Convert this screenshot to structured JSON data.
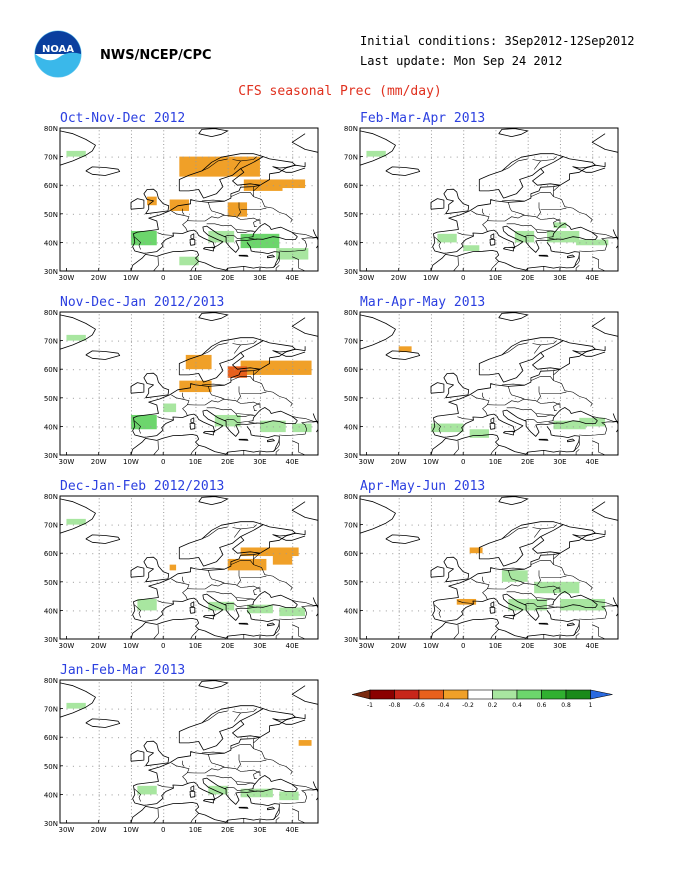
{
  "header": {
    "agency": "NWS/NCEP/CPC",
    "initial_conditions": "Initial conditions: 3Sep2012-12Sep2012",
    "last_update": "Last update: Mon Sep 24 2012",
    "title": "CFS seasonal Prec (mm/day)"
  },
  "logo": {
    "text": "NOAA",
    "icon": "noaa-logo-icon"
  },
  "axes": {
    "lat_labels": [
      "80N",
      "70N",
      "60N",
      "50N",
      "40N",
      "30N"
    ],
    "lon_labels": [
      "30W",
      "20W",
      "10W",
      "0",
      "10E",
      "20E",
      "30E",
      "40E"
    ]
  },
  "panels": [
    {
      "title": "Oct-Nov-Dec 2012",
      "anomalies": [
        {
          "lon": 5,
          "lat": 63,
          "w": 25,
          "h": 7,
          "v": -0.3
        },
        {
          "lon": 25,
          "lat": 58,
          "w": 12,
          "h": 4,
          "v": -0.3
        },
        {
          "lon": 32,
          "lat": 59,
          "w": 12,
          "h": 3,
          "v": -0.3
        },
        {
          "lon": 2,
          "lat": 51,
          "w": 6,
          "h": 4,
          "v": -0.3
        },
        {
          "lon": -5,
          "lat": 53,
          "w": 3,
          "h": 3,
          "v": -0.3
        },
        {
          "lon": 20,
          "lat": 49,
          "w": 6,
          "h": 5,
          "v": -0.3
        },
        {
          "lon": -10,
          "lat": 39,
          "w": 8,
          "h": 5,
          "v": 0.4
        },
        {
          "lon": -30,
          "lat": 70,
          "w": 6,
          "h": 2,
          "v": 0.3
        },
        {
          "lon": 14,
          "lat": 40,
          "w": 8,
          "h": 4,
          "v": 0.3
        },
        {
          "lon": 24,
          "lat": 38,
          "w": 12,
          "h": 5,
          "v": 0.4
        },
        {
          "lon": 35,
          "lat": 34,
          "w": 10,
          "h": 4,
          "v": 0.3
        },
        {
          "lon": 5,
          "lat": 32,
          "w": 6,
          "h": 3,
          "v": 0.3
        }
      ]
    },
    {
      "title": "Feb-Mar-Apr 2013",
      "anomalies": [
        {
          "lon": -30,
          "lat": 70,
          "w": 6,
          "h": 2,
          "v": 0.3
        },
        {
          "lon": -8,
          "lat": 40,
          "w": 6,
          "h": 3,
          "v": 0.3
        },
        {
          "lon": 0,
          "lat": 37,
          "w": 5,
          "h": 2,
          "v": 0.3
        },
        {
          "lon": 16,
          "lat": 40,
          "w": 6,
          "h": 4,
          "v": 0.3
        },
        {
          "lon": 26,
          "lat": 40,
          "w": 10,
          "h": 4,
          "v": 0.3
        },
        {
          "lon": 35,
          "lat": 39,
          "w": 10,
          "h": 2,
          "v": 0.3
        },
        {
          "lon": 28,
          "lat": 45,
          "w": 4,
          "h": 2,
          "v": 0.3
        }
      ]
    },
    {
      "title": "Nov-Dec-Jan 2012/2013",
      "anomalies": [
        {
          "lon": 24,
          "lat": 58,
          "w": 22,
          "h": 5,
          "v": -0.3
        },
        {
          "lon": 20,
          "lat": 57,
          "w": 6,
          "h": 4,
          "v": -0.6
        },
        {
          "lon": 7,
          "lat": 60,
          "w": 8,
          "h": 5,
          "v": -0.3
        },
        {
          "lon": 5,
          "lat": 52,
          "w": 10,
          "h": 4,
          "v": -0.3
        },
        {
          "lon": -10,
          "lat": 39,
          "w": 8,
          "h": 5,
          "v": 0.4
        },
        {
          "lon": -30,
          "lat": 70,
          "w": 6,
          "h": 2,
          "v": 0.3
        },
        {
          "lon": 0,
          "lat": 45,
          "w": 4,
          "h": 3,
          "v": 0.3
        },
        {
          "lon": 16,
          "lat": 40,
          "w": 8,
          "h": 4,
          "v": 0.3
        },
        {
          "lon": 30,
          "lat": 38,
          "w": 8,
          "h": 4,
          "v": 0.3
        },
        {
          "lon": 40,
          "lat": 38,
          "w": 6,
          "h": 3,
          "v": 0.3
        }
      ]
    },
    {
      "title": "Mar-Apr-May 2013",
      "anomalies": [
        {
          "lon": -20,
          "lat": 66,
          "w": 4,
          "h": 2,
          "v": -0.3
        },
        {
          "lon": -10,
          "lat": 38,
          "w": 10,
          "h": 3,
          "v": 0.3
        },
        {
          "lon": 2,
          "lat": 36,
          "w": 6,
          "h": 3,
          "v": 0.3
        },
        {
          "lon": 28,
          "lat": 39,
          "w": 10,
          "h": 3,
          "v": 0.3
        },
        {
          "lon": 36,
          "lat": 40,
          "w": 8,
          "h": 3,
          "v": 0.3
        }
      ]
    },
    {
      "title": "Dec-Jan-Feb 2012/2013",
      "anomalies": [
        {
          "lon": 24,
          "lat": 59,
          "w": 18,
          "h": 3,
          "v": -0.3
        },
        {
          "lon": 20,
          "lat": 54,
          "w": 12,
          "h": 4,
          "v": -0.3
        },
        {
          "lon": 34,
          "lat": 56,
          "w": 6,
          "h": 4,
          "v": -0.3
        },
        {
          "lon": 2,
          "lat": 54,
          "w": 2,
          "h": 2,
          "v": -0.3
        },
        {
          "lon": -30,
          "lat": 70,
          "w": 6,
          "h": 2,
          "v": 0.3
        },
        {
          "lon": -8,
          "lat": 40,
          "w": 6,
          "h": 4,
          "v": 0.3
        },
        {
          "lon": 14,
          "lat": 40,
          "w": 8,
          "h": 3,
          "v": 0.3
        },
        {
          "lon": 26,
          "lat": 39,
          "w": 8,
          "h": 3,
          "v": 0.3
        },
        {
          "lon": 36,
          "lat": 38,
          "w": 8,
          "h": 3,
          "v": 0.3
        }
      ]
    },
    {
      "title": "Apr-May-Jun 2013",
      "anomalies": [
        {
          "lon": 2,
          "lat": 60,
          "w": 4,
          "h": 2,
          "v": -0.3
        },
        {
          "lon": -2,
          "lat": 42,
          "w": 6,
          "h": 2,
          "v": -0.3
        },
        {
          "lon": 12,
          "lat": 50,
          "w": 8,
          "h": 4,
          "v": 0.3
        },
        {
          "lon": 22,
          "lat": 46,
          "w": 14,
          "h": 4,
          "v": 0.3
        },
        {
          "lon": 14,
          "lat": 40,
          "w": 12,
          "h": 4,
          "v": 0.3
        },
        {
          "lon": 30,
          "lat": 40,
          "w": 14,
          "h": 4,
          "v": 0.3
        }
      ]
    },
    {
      "title": "Jan-Feb-Mar 2013",
      "anomalies": [
        {
          "lon": -30,
          "lat": 70,
          "w": 6,
          "h": 2,
          "v": 0.3
        },
        {
          "lon": -8,
          "lat": 40,
          "w": 6,
          "h": 3,
          "v": 0.3
        },
        {
          "lon": 14,
          "lat": 40,
          "w": 6,
          "h": 3,
          "v": 0.3
        },
        {
          "lon": 24,
          "lat": 39,
          "w": 10,
          "h": 3,
          "v": 0.3
        },
        {
          "lon": 42,
          "lat": 57,
          "w": 4,
          "h": 2,
          "v": -0.3
        },
        {
          "lon": 36,
          "lat": 38,
          "w": 6,
          "h": 3,
          "v": 0.3
        }
      ]
    }
  ],
  "colorbar": {
    "labels": [
      "-1",
      "-0.8",
      "-0.6",
      "-0.4",
      "-0.2",
      "0.2",
      "0.4",
      "0.6",
      "0.8",
      "1"
    ],
    "colors": [
      "#8b0000",
      "#c8261a",
      "#e8601c",
      "#f0a028",
      "#ffffff",
      "#a8e6a0",
      "#6cd66c",
      "#30b030",
      "#1a8a1a"
    ],
    "low_arrow_color": "#7a2a10",
    "high_arrow_color": "#2a6ae0"
  },
  "colors": {
    "title_red": "#e0301e",
    "panel_title_blue": "#2b3fe0",
    "dry_orange": "#f0a028",
    "dry_red": "#e05010",
    "wet_light_green": "#a8e6a0",
    "wet_green": "#6cd66c"
  }
}
